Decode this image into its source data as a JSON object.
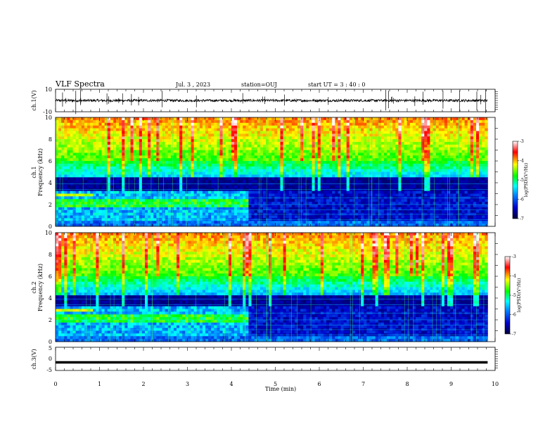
{
  "header": {
    "title": "VLF Spectra",
    "date": "Jul. 3 , 2023",
    "station": "station=OUJ",
    "start_time": "start UT = 3 : 40 : 0"
  },
  "chart_data": [
    {
      "type": "line",
      "name": "channel-1-waveform",
      "ylabel": "ch.1(V)",
      "ylim": [
        -10,
        10
      ],
      "yticks": [
        "10",
        "-10"
      ],
      "xlim": [
        0,
        10
      ],
      "baseline": 0,
      "color": "#000000"
    },
    {
      "type": "heatmap",
      "name": "channel-1-spectrogram",
      "ylabel": "ch.1\nFrequency (kHz)",
      "ylim": [
        0,
        10
      ],
      "yticks": [
        "0",
        "2",
        "4",
        "6",
        "8",
        "10"
      ],
      "xlim": [
        0,
        10
      ],
      "data_end_min": 9.83,
      "regime_change_min": 4.35,
      "colorbar": {
        "label": "log(PSD)(V²/Hz)",
        "range": [
          -7,
          -3
        ],
        "ticks": [
          "-3",
          "-4",
          "-5",
          "-6",
          "-7"
        ],
        "colors": [
          "#00003c",
          "#0000c8",
          "#0080ff",
          "#00ffff",
          "#00ff00",
          "#ffff00",
          "#ff0000",
          "#ffffff"
        ]
      }
    },
    {
      "type": "heatmap",
      "name": "channel-2-spectrogram",
      "ylabel": "ch.2\nFrequency (kHz)",
      "ylim": [
        0,
        10
      ],
      "yticks": [
        "0",
        "2",
        "4",
        "6",
        "8",
        "10"
      ],
      "xlim": [
        0,
        10
      ],
      "data_end_min": 9.83,
      "regime_change_min": 4.35,
      "colorbar": {
        "label": "log(PSD)(V²/Hz)",
        "range": [
          -7,
          -3
        ],
        "ticks": [
          "-3",
          "-4",
          "-5",
          "-6",
          "-7"
        ],
        "colors": [
          "#00003c",
          "#0000c8",
          "#0080ff",
          "#00ffff",
          "#00ff00",
          "#ffff00",
          "#ff0000",
          "#ffffff"
        ]
      }
    },
    {
      "type": "line",
      "name": "channel-3-waveform",
      "ylabel": "ch.3(V)",
      "ylim": [
        -5,
        5
      ],
      "yticks": [
        "5",
        "0",
        "-5"
      ],
      "xlim": [
        0,
        10
      ],
      "value": -1.5,
      "color": "#000000"
    }
  ],
  "xaxis": {
    "label": "Time (min)",
    "ticks": [
      "0",
      "1",
      "2",
      "3",
      "4",
      "5",
      "6",
      "7",
      "8",
      "9",
      "10"
    ]
  }
}
